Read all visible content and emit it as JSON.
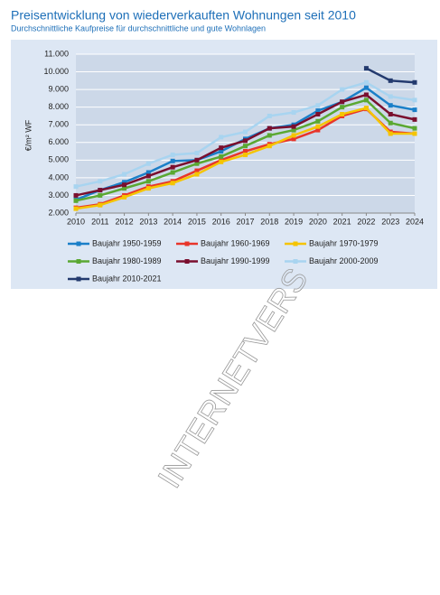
{
  "chart_data": {
    "type": "line",
    "title": "Preisentwicklung von wiederverkauften Wohnungen seit 2010",
    "subtitle": "Durchschnittliche Kaufpreise für durchschnittliche und gute Wohnlagen",
    "y_label": "€/m² WF",
    "x": [
      2010,
      2011,
      2012,
      2013,
      2014,
      2015,
      2016,
      2017,
      2018,
      2019,
      2020,
      2021,
      2022,
      2023,
      2024
    ],
    "xlim": [
      2010,
      2024
    ],
    "xticks": [
      2010,
      2011,
      2012,
      2013,
      2014,
      2015,
      2016,
      2017,
      2018,
      2019,
      2020,
      2021,
      2022,
      2023,
      2024
    ],
    "ylim": [
      2000,
      11000
    ],
    "yticks": [
      {
        "value": 2000,
        "label": "2.000"
      },
      {
        "value": 3000,
        "label": "3.000"
      },
      {
        "value": 4000,
        "label": "4.000"
      },
      {
        "value": 5000,
        "label": "5.000"
      },
      {
        "value": 6000,
        "label": "6.000"
      },
      {
        "value": 7000,
        "label": "7.000"
      },
      {
        "value": 8000,
        "label": "8.000"
      },
      {
        "value": 9000,
        "label": "9.000"
      },
      {
        "value": 10000,
        "label": "10.000"
      },
      {
        "value": 11000,
        "label": "11.000"
      }
    ],
    "grid": true,
    "series": [
      {
        "name": "Baujahr 1950-1959",
        "color": "#1a7fc8",
        "values": [
          2750,
          3300,
          3750,
          4300,
          4950,
          5000,
          5500,
          6200,
          6800,
          7000,
          7800,
          8300,
          9100,
          8100,
          7850
        ]
      },
      {
        "name": "Baujahr 1960-1969",
        "color": "#e8352a",
        "values": [
          2300,
          2500,
          3000,
          3500,
          3800,
          4400,
          5000,
          5500,
          5900,
          6200,
          6700,
          7500,
          7900,
          6600,
          6500
        ]
      },
      {
        "name": "Baujahr 1970-1979",
        "color": "#f5c400",
        "values": [
          2250,
          2450,
          2900,
          3400,
          3700,
          4200,
          4900,
          5300,
          5800,
          6400,
          6900,
          7600,
          7950,
          6500,
          6500
        ]
      },
      {
        "name": "Baujahr 1980-1989",
        "color": "#5aa832",
        "values": [
          2700,
          3000,
          3400,
          3800,
          4300,
          4800,
          5200,
          5800,
          6400,
          6700,
          7200,
          8000,
          8400,
          7100,
          6800
        ]
      },
      {
        "name": "Baujahr 1990-1999",
        "color": "#7a0f2e",
        "values": [
          3000,
          3300,
          3600,
          4100,
          4600,
          5000,
          5700,
          6100,
          6800,
          6900,
          7600,
          8300,
          8700,
          7600,
          7300
        ]
      },
      {
        "name": "Baujahr 2000-2009",
        "color": "#a8d4f0",
        "values": [
          3500,
          3800,
          4200,
          4800,
          5300,
          5400,
          6300,
          6600,
          7500,
          7700,
          8100,
          9000,
          9400,
          8600,
          8400
        ]
      },
      {
        "name": "Baujahr 2010-2021",
        "color": "#233a6e",
        "values": [
          null,
          null,
          null,
          null,
          null,
          null,
          null,
          null,
          null,
          null,
          null,
          null,
          10200,
          9500,
          9400
        ]
      }
    ]
  },
  "watermark": "INTERNETVERS"
}
